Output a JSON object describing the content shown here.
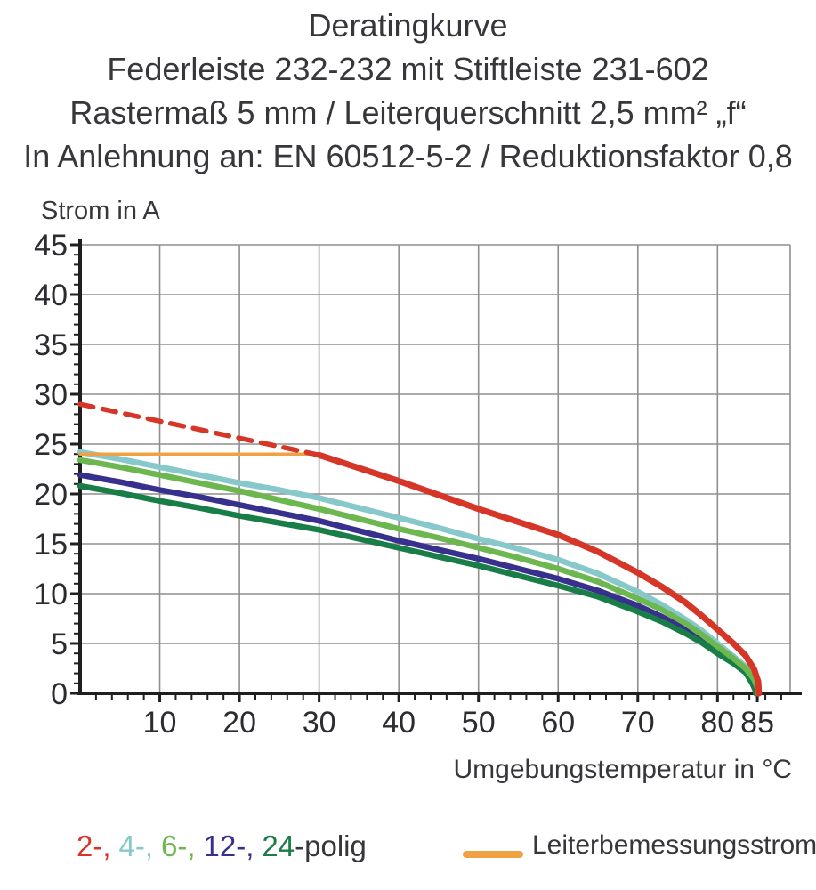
{
  "title": {
    "line1": "Deratingkurve",
    "line2": "Federleiste 232-232 mit Stiftleiste 231-602",
    "line3": "Rastermaß 5 mm / Leiterquerschnitt 2,5 mm² „f“",
    "line4": "In Anlehnung an: EN 60512-5-2 / Reduktionsfaktor 0,8"
  },
  "colors": {
    "text": "#37373b",
    "grid": "#8f8f8f",
    "axis": "#1f1f1f",
    "red_2polig": "#d63627",
    "cyan_4polig": "#87c8cb",
    "green_6polig": "#6cb750",
    "navy_12polig": "#37308d",
    "darkgreen_24polig": "#187d46",
    "orange_rated": "#f0a243"
  },
  "chart_data": {
    "type": "line",
    "title": "Deratingkurve",
    "ylabel": "Strom in A",
    "xlabel": "Umgebungstemperatur in °C",
    "xlim": [
      0,
      89
    ],
    "ylim": [
      0,
      45
    ],
    "x_major_ticks": [
      10,
      20,
      30,
      40,
      50,
      60,
      70,
      80,
      85
    ],
    "x_minor_step": 2,
    "y_major_ticks": [
      0,
      5,
      10,
      15,
      20,
      25,
      30,
      35,
      40,
      45
    ],
    "y_minor_step": 1,
    "grid": true,
    "legend_position": "bottom",
    "series": [
      {
        "id": "curve-4polig",
        "name": "4-polig",
        "color": "#87c8cb",
        "style": "solid",
        "width": 6.5,
        "points": [
          [
            0,
            24.2
          ],
          [
            5,
            23.5
          ],
          [
            10,
            22.7
          ],
          [
            15,
            21.9
          ],
          [
            20,
            21.1
          ],
          [
            25,
            20.4
          ],
          [
            30,
            19.6
          ],
          [
            35,
            18.6
          ],
          [
            40,
            17.6
          ],
          [
            45,
            16.6
          ],
          [
            50,
            15.5
          ],
          [
            55,
            14.5
          ],
          [
            60,
            13.4
          ],
          [
            65,
            12.0
          ],
          [
            70,
            10.2
          ],
          [
            73,
            8.9
          ],
          [
            76,
            7.4
          ],
          [
            78,
            6.3
          ],
          [
            80,
            5.0
          ],
          [
            82,
            3.7
          ],
          [
            83.5,
            2.7
          ],
          [
            84.5,
            1.6
          ],
          [
            84.9,
            0.8
          ],
          [
            85,
            0
          ]
        ]
      },
      {
        "id": "curve-12polig",
        "name": "12-polig",
        "color": "#37308d",
        "style": "solid",
        "width": 6.5,
        "points": [
          [
            0,
            21.9
          ],
          [
            5,
            21.2
          ],
          [
            10,
            20.4
          ],
          [
            15,
            19.7
          ],
          [
            20,
            18.9
          ],
          [
            25,
            18.1
          ],
          [
            30,
            17.3
          ],
          [
            35,
            16.3
          ],
          [
            40,
            15.3
          ],
          [
            45,
            14.4
          ],
          [
            50,
            13.5
          ],
          [
            55,
            12.5
          ],
          [
            60,
            11.5
          ],
          [
            65,
            10.3
          ],
          [
            70,
            8.8
          ],
          [
            73,
            7.7
          ],
          [
            76,
            6.4
          ],
          [
            78,
            5.4
          ],
          [
            80,
            4.3
          ],
          [
            82,
            3.2
          ],
          [
            83.5,
            2.3
          ],
          [
            84.4,
            1.2
          ],
          [
            84.8,
            0.5
          ],
          [
            84.9,
            0
          ]
        ]
      },
      {
        "id": "curve-24polig",
        "name": "24-polig",
        "color": "#187d46",
        "style": "solid",
        "width": 6.5,
        "points": [
          [
            0,
            20.8
          ],
          [
            5,
            20.1
          ],
          [
            10,
            19.3
          ],
          [
            15,
            18.6
          ],
          [
            20,
            17.8
          ],
          [
            25,
            17.1
          ],
          [
            30,
            16.4
          ],
          [
            35,
            15.5
          ],
          [
            40,
            14.6
          ],
          [
            45,
            13.7
          ],
          [
            50,
            12.8
          ],
          [
            55,
            11.8
          ],
          [
            60,
            10.8
          ],
          [
            65,
            9.7
          ],
          [
            70,
            8.2
          ],
          [
            73,
            7.2
          ],
          [
            76,
            6.0
          ],
          [
            78,
            5.1
          ],
          [
            80,
            4.0
          ],
          [
            82,
            3.0
          ],
          [
            83.5,
            2.1
          ],
          [
            84.3,
            1.1
          ],
          [
            84.7,
            0.4
          ],
          [
            84.8,
            0
          ]
        ]
      },
      {
        "id": "curve-6polig",
        "name": "6-polig",
        "color": "#6cb750",
        "style": "solid",
        "width": 6.5,
        "points": [
          [
            0,
            23.4
          ],
          [
            5,
            22.7
          ],
          [
            10,
            21.9
          ],
          [
            15,
            21.1
          ],
          [
            20,
            20.3
          ],
          [
            25,
            19.4
          ],
          [
            30,
            18.5
          ],
          [
            35,
            17.5
          ],
          [
            40,
            16.5
          ],
          [
            45,
            15.6
          ],
          [
            50,
            14.6
          ],
          [
            55,
            13.6
          ],
          [
            60,
            12.5
          ],
          [
            65,
            11.2
          ],
          [
            70,
            9.5
          ],
          [
            73,
            8.4
          ],
          [
            76,
            7.0
          ],
          [
            78,
            5.9
          ],
          [
            80,
            4.7
          ],
          [
            82,
            3.5
          ],
          [
            83.5,
            2.5
          ],
          [
            84.6,
            1.4
          ],
          [
            85,
            0.6
          ],
          [
            85.1,
            0
          ]
        ]
      },
      {
        "id": "rated-current-line",
        "name": "Leiterbemessungsstrom",
        "color": "#f0a243",
        "style": "solid",
        "width": 3.5,
        "points": [
          [
            0,
            24
          ],
          [
            30,
            24
          ]
        ]
      },
      {
        "id": "curve-2polig-limit-dashed",
        "name": "2-polig (gestrichelt)",
        "color": "#d63627",
        "style": "dashed",
        "width": 5.5,
        "points": [
          [
            0,
            29
          ],
          [
            30,
            23.9
          ]
        ]
      },
      {
        "id": "curve-2polig",
        "name": "2-polig",
        "color": "#d63627",
        "style": "solid",
        "width": 7,
        "points": [
          [
            30,
            23.9
          ],
          [
            35,
            22.6
          ],
          [
            40,
            21.3
          ],
          [
            45,
            19.9
          ],
          [
            50,
            18.5
          ],
          [
            55,
            17.2
          ],
          [
            60,
            15.9
          ],
          [
            65,
            14.2
          ],
          [
            70,
            12.1
          ],
          [
            73,
            10.7
          ],
          [
            76,
            9.1
          ],
          [
            78,
            7.8
          ],
          [
            80,
            6.4
          ],
          [
            82,
            5.0
          ],
          [
            83.5,
            3.8
          ],
          [
            84.6,
            2.4
          ],
          [
            85.1,
            1.2
          ],
          [
            85.2,
            0
          ]
        ]
      }
    ]
  },
  "legend": {
    "poles": [
      {
        "label": "2-,",
        "color": "#d63627"
      },
      {
        "label": "4-,",
        "color": "#87c8cb"
      },
      {
        "label": "6-,",
        "color": "#6cb750"
      },
      {
        "label": "12-,",
        "color": "#37308d"
      },
      {
        "label": "24",
        "color": "#187d46"
      }
    ],
    "suffix": "-polig",
    "rated_current_label": "Leiterbemessungsstrom",
    "rated_current_color": "#f0a243"
  }
}
